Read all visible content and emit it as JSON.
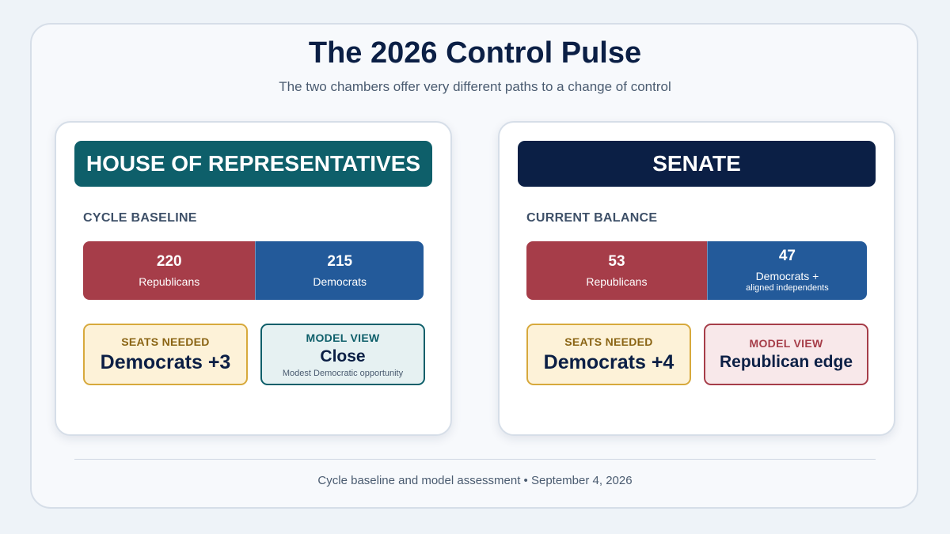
{
  "title": "The 2026 Control Pulse",
  "subtitle": "The two chambers offer very different paths to a change of control",
  "colors": {
    "republican": "#a63d49",
    "democrat": "#235a9a",
    "house_accent": "#0e5f6a",
    "senate_accent": "#0b1f45",
    "seats_needed_accent": "#d7a93c"
  },
  "house": {
    "banner": "HOUSE OF REPRESENTATIVES",
    "section_label": "CYCLE BASELINE",
    "republicans": {
      "value": "220",
      "label": "Republicans"
    },
    "democrats": {
      "value": "215",
      "label": "Democrats"
    },
    "seats_needed": {
      "label": "SEATS NEEDED",
      "value": "Democrats +3"
    },
    "model_view": {
      "label": "MODEL VIEW",
      "value": "Close",
      "note": "Modest Democratic opportunity"
    }
  },
  "senate": {
    "banner": "SENATE",
    "section_label": "CURRENT BALANCE",
    "republicans": {
      "value": "53",
      "label": "Republicans"
    },
    "democrats": {
      "value": "47",
      "label_line1": "Democrats +",
      "label_line2": "aligned independents"
    },
    "seats_needed": {
      "label": "SEATS NEEDED",
      "value": "Democrats +4"
    },
    "model_view": {
      "label": "MODEL VIEW",
      "value": "Republican edge"
    }
  },
  "footer": "Cycle baseline and model assessment • September 4, 2026"
}
